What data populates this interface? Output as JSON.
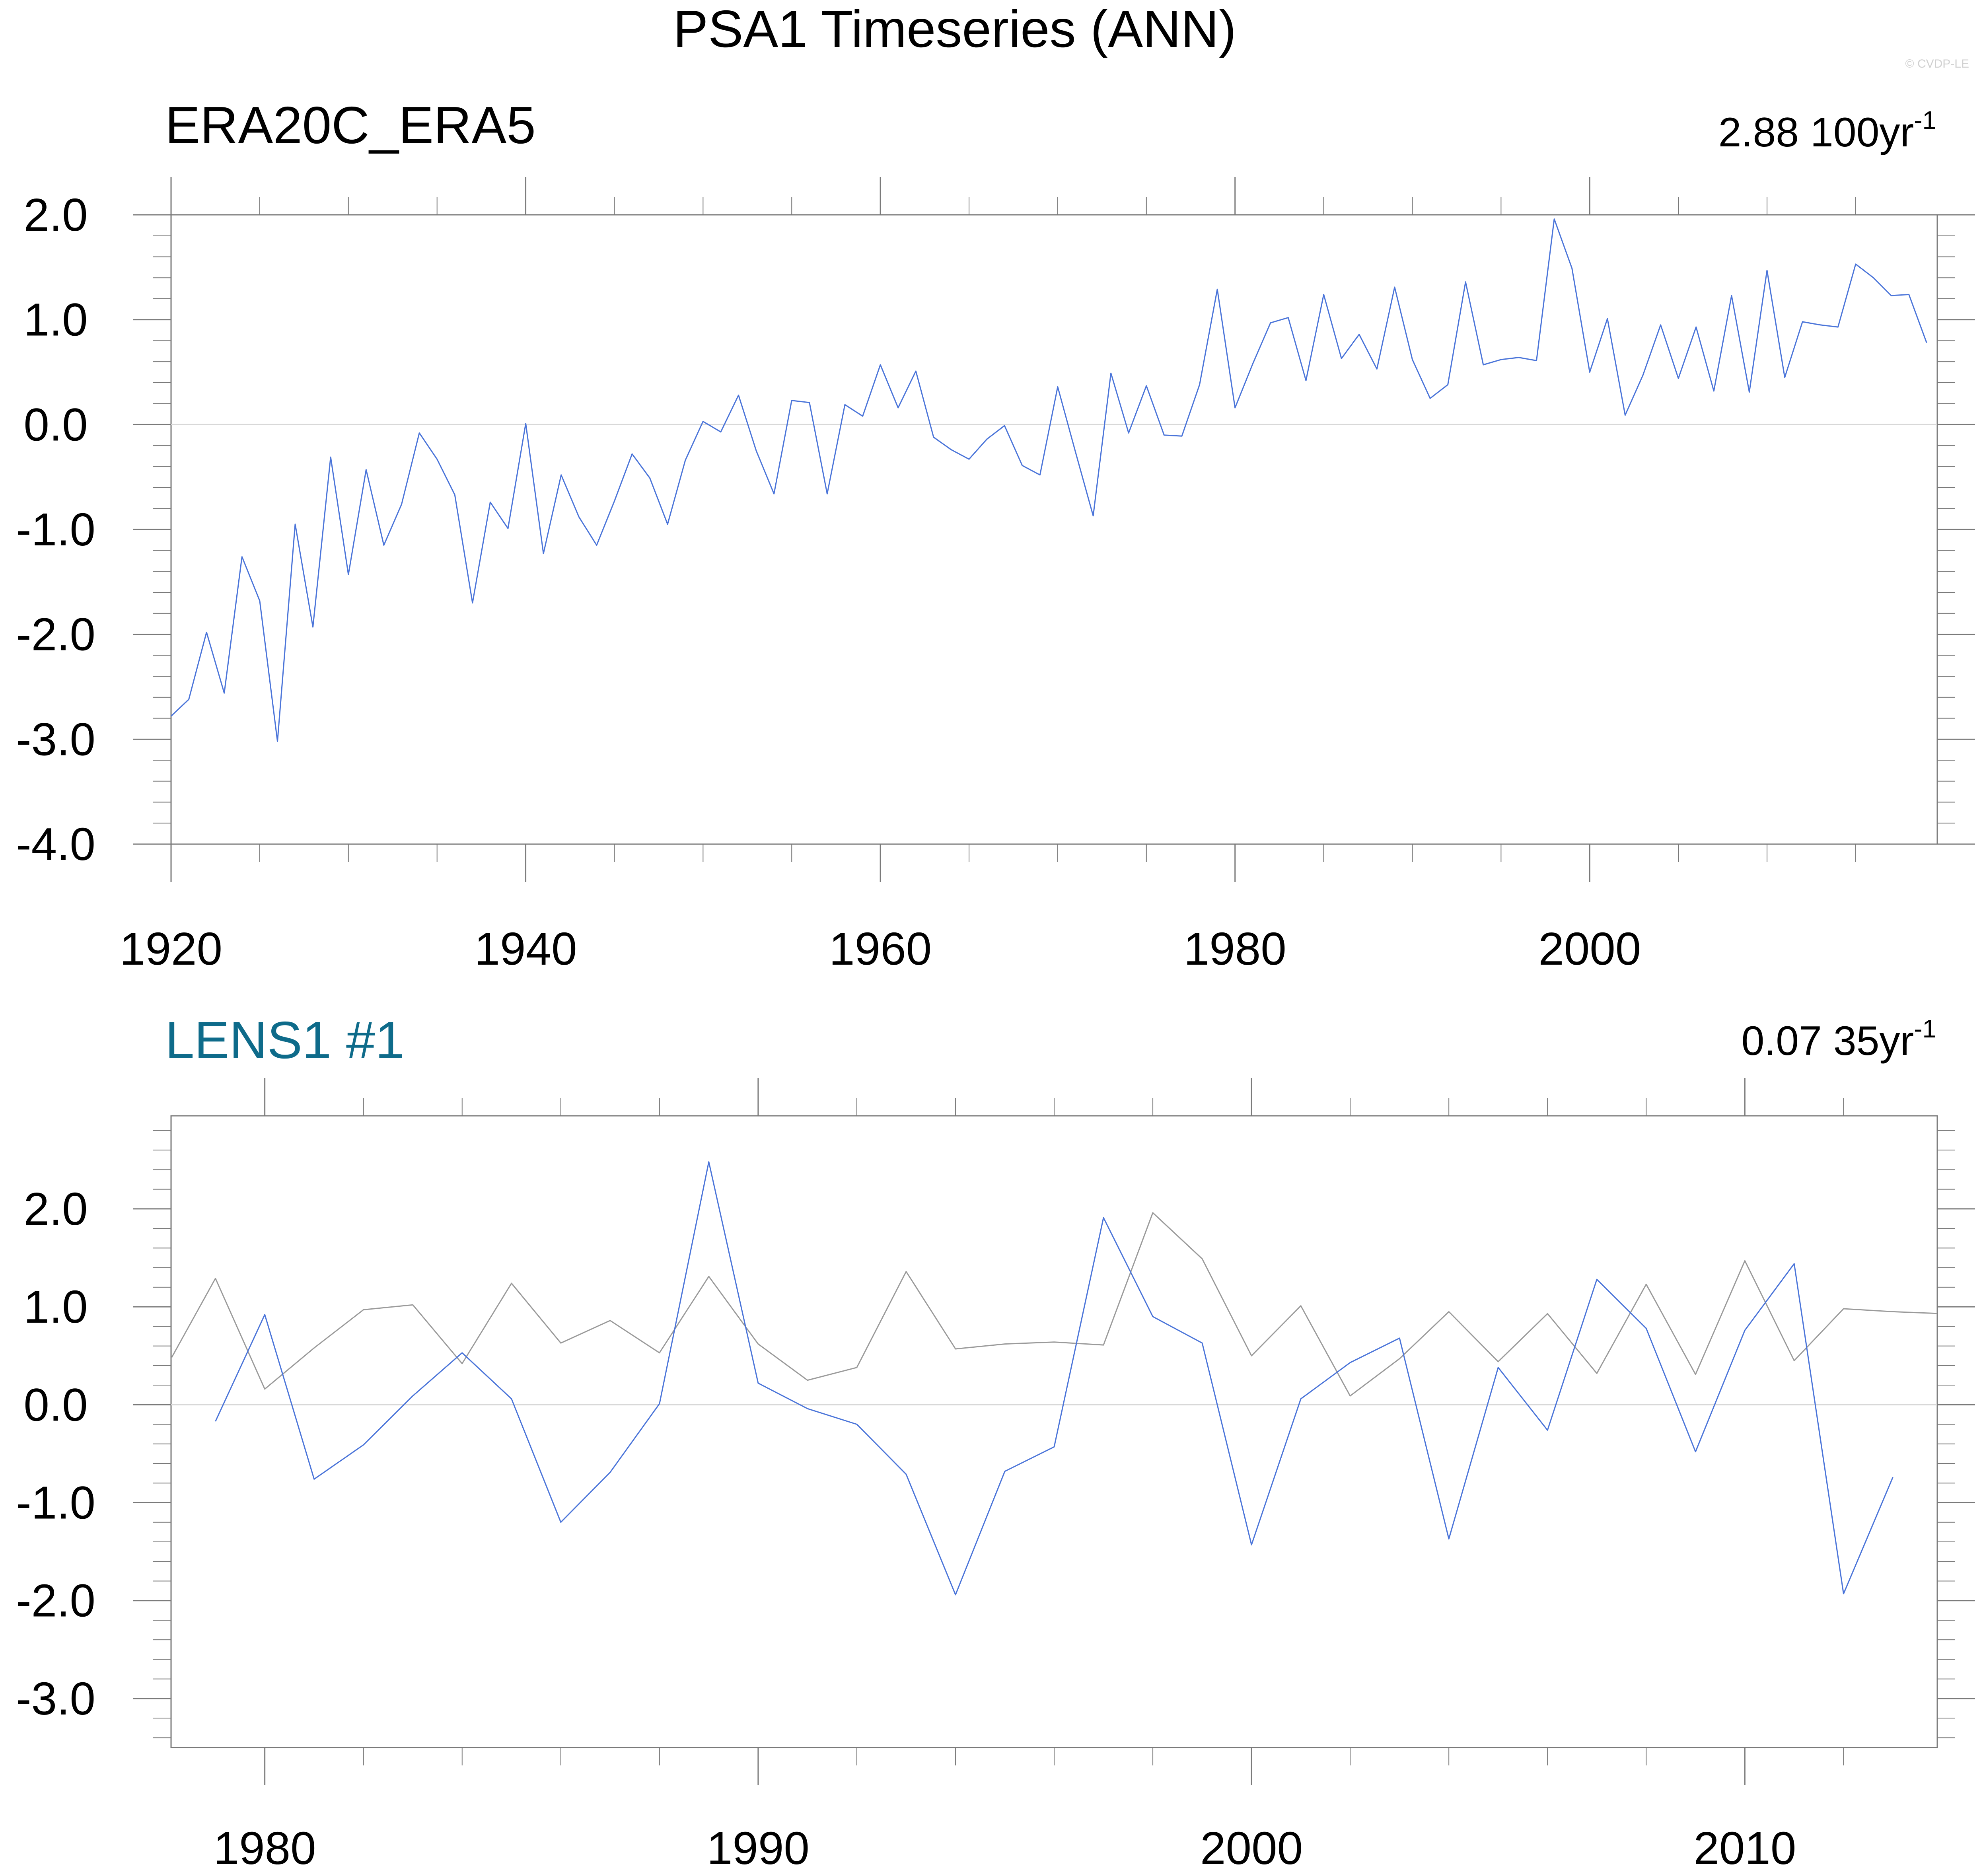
{
  "title": "PSA1 Timeseries (ANN)",
  "watermark": "© CVDP-LE",
  "colors": {
    "series": "#4a74d9",
    "observed": "#9a9a9a",
    "frame": "#7a7a7a",
    "zero": "#d8d8d8",
    "lens_title": "#0e6b8a",
    "text": "#000000"
  },
  "chart_data": [
    {
      "type": "line",
      "title": "ERA20C_ERA5",
      "trend_value": "2.88 100yr",
      "trend_exp": "-1",
      "xlim": [
        1920,
        2019.6
      ],
      "ylim": [
        -4.0,
        2.0
      ],
      "x_ticks": [
        1920,
        1940,
        1960,
        1980,
        2000
      ],
      "x_tick_labels": [
        "1920",
        "1940",
        "1960",
        "1980",
        "2000"
      ],
      "y_ticks": [
        2.0,
        1.0,
        0.0,
        -1.0,
        -2.0,
        -3.0,
        -4.0
      ],
      "y_tick_labels": [
        "2.0",
        "1.0",
        "0.0",
        "-1.0",
        "-2.0",
        "-3.0",
        "-4.0"
      ],
      "series": [
        {
          "name": "ERA20C_ERA5",
          "role": "main",
          "x_start": 1920,
          "values": [
            -2.78,
            -2.62,
            -1.98,
            -2.56,
            -1.26,
            -1.68,
            -3.02,
            -0.95,
            -1.93,
            -0.31,
            -1.43,
            -0.43,
            -1.15,
            -0.76,
            -0.08,
            -0.33,
            -0.67,
            -1.7,
            -0.74,
            -0.99,
            0.01,
            -1.23,
            -0.48,
            -0.88,
            -1.15,
            -0.73,
            -0.28,
            -0.51,
            -0.95,
            -0.34,
            0.03,
            -0.07,
            0.28,
            -0.25,
            -0.66,
            0.23,
            0.21,
            -0.66,
            0.19,
            0.08,
            0.57,
            0.16,
            0.51,
            -0.12,
            -0.24,
            -0.33,
            -0.14,
            -0.01,
            -0.39,
            -0.48,
            0.36,
            -0.26,
            -0.87,
            0.49,
            -0.08,
            0.37,
            -0.1,
            -0.11,
            0.38,
            1.29,
            0.16,
            0.58,
            0.97,
            1.02,
            0.42,
            1.24,
            0.63,
            0.86,
            0.53,
            1.31,
            0.62,
            0.25,
            0.38,
            1.36,
            0.57,
            0.62,
            0.64,
            0.61,
            1.96,
            1.49,
            0.5,
            1.01,
            0.09,
            0.47,
            0.95,
            0.44,
            0.93,
            0.32,
            1.23,
            0.31,
            1.47,
            0.45,
            0.98,
            0.95,
            0.93,
            1.53,
            1.4,
            1.23,
            1.24,
            0.78
          ]
        }
      ]
    },
    {
      "type": "line",
      "title": "LENS1 #1",
      "trend_value": "0.07 35yr",
      "trend_exp": "-1",
      "xlim": [
        1978.1,
        2013.9
      ],
      "ylim": [
        -3.5,
        2.95
      ],
      "x_ticks": [
        1980,
        1990,
        2000,
        2010
      ],
      "x_tick_labels": [
        "1980",
        "1990",
        "2000",
        "2010"
      ],
      "y_ticks": [
        2.0,
        1.0,
        0.0,
        -1.0,
        -2.0,
        -3.0
      ],
      "y_tick_labels": [
        "2.0",
        "1.0",
        "0.0",
        "-1.0",
        "-2.0",
        "-3.0"
      ],
      "series": [
        {
          "name": "LENS1 #1",
          "role": "main",
          "x_start": 1979,
          "values": [
            -0.17,
            0.92,
            -0.76,
            -0.41,
            0.09,
            0.53,
            0.06,
            -1.2,
            -0.69,
            0.01,
            2.48,
            0.22,
            -0.04,
            -0.2,
            -0.71,
            -1.94,
            -0.68,
            -0.43,
            1.91,
            0.9,
            0.63,
            -1.43,
            0.06,
            0.43,
            0.68,
            -1.37,
            0.38,
            -0.26,
            1.28,
            0.78,
            -0.48,
            0.76,
            1.44,
            -1.93,
            -0.74
          ]
        },
        {
          "name": "ERA20C_ERA5",
          "role": "observed",
          "x_start": 1978,
          "values": [
            0.38,
            1.29,
            0.16,
            0.58,
            0.97,
            1.02,
            0.42,
            1.24,
            0.63,
            0.86,
            0.53,
            1.31,
            0.62,
            0.25,
            0.38,
            1.36,
            0.57,
            0.62,
            0.64,
            0.61,
            1.96,
            1.49,
            0.5,
            1.01,
            0.09,
            0.47,
            0.95,
            0.44,
            0.93,
            0.32,
            1.23,
            0.31,
            1.47,
            0.45,
            0.98,
            0.95,
            0.93
          ]
        }
      ]
    }
  ]
}
